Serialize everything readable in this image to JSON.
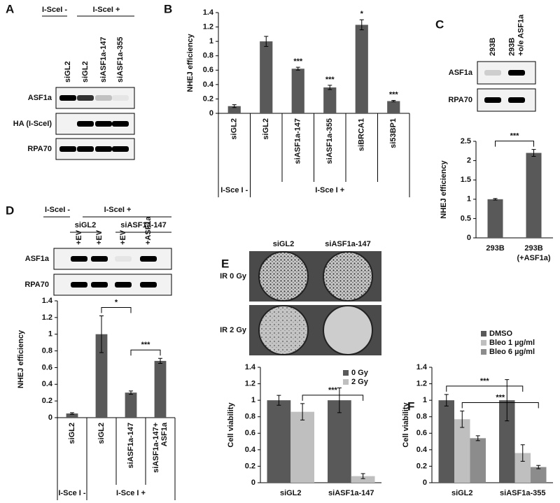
{
  "panel_labels": [
    "A",
    "B",
    "C",
    "D",
    "E",
    "F"
  ],
  "blots": [
    {
      "headers": [
        "I-SceI -",
        "I-SceI +"
      ],
      "lanes": [
        [
          "siGL2"
        ],
        [
          "siGL2"
        ],
        [
          "siASF1a-147"
        ],
        [
          "siASF1a-355"
        ]
      ],
      "rows": [
        "ASF1a",
        "HA (I-SceI)",
        "RPA70"
      ]
    },
    {
      "lanes": [
        [
          "293B"
        ],
        [
          "293B",
          "+o/e ASF1a"
        ]
      ],
      "rows": [
        "ASF1a",
        "RPA70"
      ]
    },
    {
      "headers": [
        "I-SceI -",
        "I-SceI +"
      ],
      "subheaders": [
        "siGL2",
        "siASF1a-147"
      ],
      "lanes": [
        [
          "+EV"
        ],
        [
          "+EV"
        ],
        [
          "+EV"
        ],
        [
          "+ASF1a"
        ]
      ],
      "rows": [
        "ASF1a",
        "RPA70"
      ]
    }
  ],
  "colonies": {
    "columns": [
      "siGL2",
      "siASF1a-147"
    ],
    "rows": [
      "IR 0 Gy",
      "IR 2 Gy"
    ]
  },
  "chart_data": [
    {
      "type": "bar",
      "ylabel": "NHEJ efficiency",
      "categories": [
        "siGL2",
        "siGL2",
        "siASF1a-147",
        "siASF1a-355",
        "siBRCA1",
        "si53BP1"
      ],
      "values": [
        0.1,
        1.0,
        0.62,
        0.36,
        1.23,
        0.17
      ],
      "errors": [
        0.02,
        0.07,
        0.02,
        0.03,
        0.07,
        0.01
      ],
      "annotations": [
        null,
        null,
        "***",
        "***",
        "*",
        "***"
      ],
      "groups": [
        {
          "label": "I-Sce I -",
          "count": 1
        },
        {
          "label": "I-Sce I +",
          "count": 5
        }
      ],
      "color": "#595959",
      "ylim": [
        0,
        1.4
      ],
      "yticks": [
        0,
        0.2,
        0.4,
        0.6,
        0.8,
        1,
        1.2,
        1.4
      ]
    },
    {
      "type": "bar",
      "ylabel": "NHEJ efficiency",
      "categories": [
        [
          "293B"
        ],
        [
          "293B",
          "(+ASF1a)"
        ]
      ],
      "values": [
        1.0,
        2.2
      ],
      "errors": [
        0.02,
        0.09
      ],
      "comparisons": [
        {
          "label": "***",
          "from": 0,
          "to": 1
        }
      ],
      "color": "#595959",
      "ylim": [
        0,
        2.5
      ],
      "yticks": [
        0,
        0.5,
        1,
        1.5,
        2,
        2.5
      ]
    },
    {
      "type": "bar",
      "ylabel": "NHEJ efficiency",
      "categories": [
        [
          "siGL2"
        ],
        [
          "siGL2"
        ],
        [
          "siASF1a-147"
        ],
        [
          "siASF1a-147+",
          "ASF1a"
        ]
      ],
      "values": [
        0.05,
        1.0,
        0.3,
        0.68
      ],
      "errors": [
        0.01,
        0.22,
        0.02,
        0.03
      ],
      "groups": [
        {
          "label": "I-Sce I -",
          "count": 1
        },
        {
          "label": "I-Sce I +",
          "count": 3
        }
      ],
      "comparisons": [
        {
          "label": "*",
          "from": 1,
          "to": 2
        },
        {
          "label": "***",
          "from": 2,
          "to": 3
        }
      ],
      "color": "#595959",
      "ylim": [
        0,
        1.4
      ],
      "yticks": [
        0,
        0.2,
        0.4,
        0.6,
        0.8,
        1,
        1.2,
        1.4
      ]
    },
    {
      "type": "bar",
      "ylabel": "Cell viability",
      "categories": [
        "siGL2",
        "siASF1a-147"
      ],
      "series": [
        {
          "name": "0 Gy",
          "color": "#595959",
          "values": [
            1.0,
            1.0
          ],
          "errors": [
            0.06,
            0.15
          ]
        },
        {
          "name": "2 Gy",
          "color": "#bfbfbf",
          "values": [
            0.86,
            0.08
          ],
          "errors": [
            0.1,
            0.03
          ]
        }
      ],
      "comparisons": [
        {
          "label": "***",
          "from": [
            0,
            1
          ],
          "to": [
            1,
            1
          ]
        }
      ],
      "legend": "upper right",
      "ylim": [
        0,
        1.4
      ],
      "yticks": [
        0,
        0.2,
        0.4,
        0.6,
        0.8,
        1,
        1.2,
        1.4
      ]
    },
    {
      "type": "bar",
      "ylabel": "Cell viability",
      "categories": [
        "siGL2",
        "siASF1a-355"
      ],
      "series": [
        {
          "name": "DMSO",
          "color": "#595959",
          "values": [
            1.0,
            1.0
          ],
          "errors": [
            0.07,
            0.25
          ]
        },
        {
          "name": "Bleo 1 µg/ml",
          "color": "#bfbfbf",
          "values": [
            0.77,
            0.36
          ],
          "errors": [
            0.1,
            0.1
          ]
        },
        {
          "name": "Bleo 6 µg/ml",
          "color": "#8c8c8c",
          "values": [
            0.54,
            0.19
          ],
          "errors": [
            0.03,
            0.02
          ]
        }
      ],
      "comparisons": [
        {
          "label": "***",
          "from": [
            0,
            0
          ],
          "to": [
            1,
            1
          ]
        },
        {
          "label": "***",
          "from": [
            0,
            1
          ],
          "to": [
            1,
            2
          ]
        }
      ],
      "legend": "top",
      "ylim": [
        0,
        1.4
      ],
      "yticks": [
        0,
        0.2,
        0.4,
        0.6,
        0.8,
        1,
        1.2,
        1.4
      ]
    }
  ]
}
